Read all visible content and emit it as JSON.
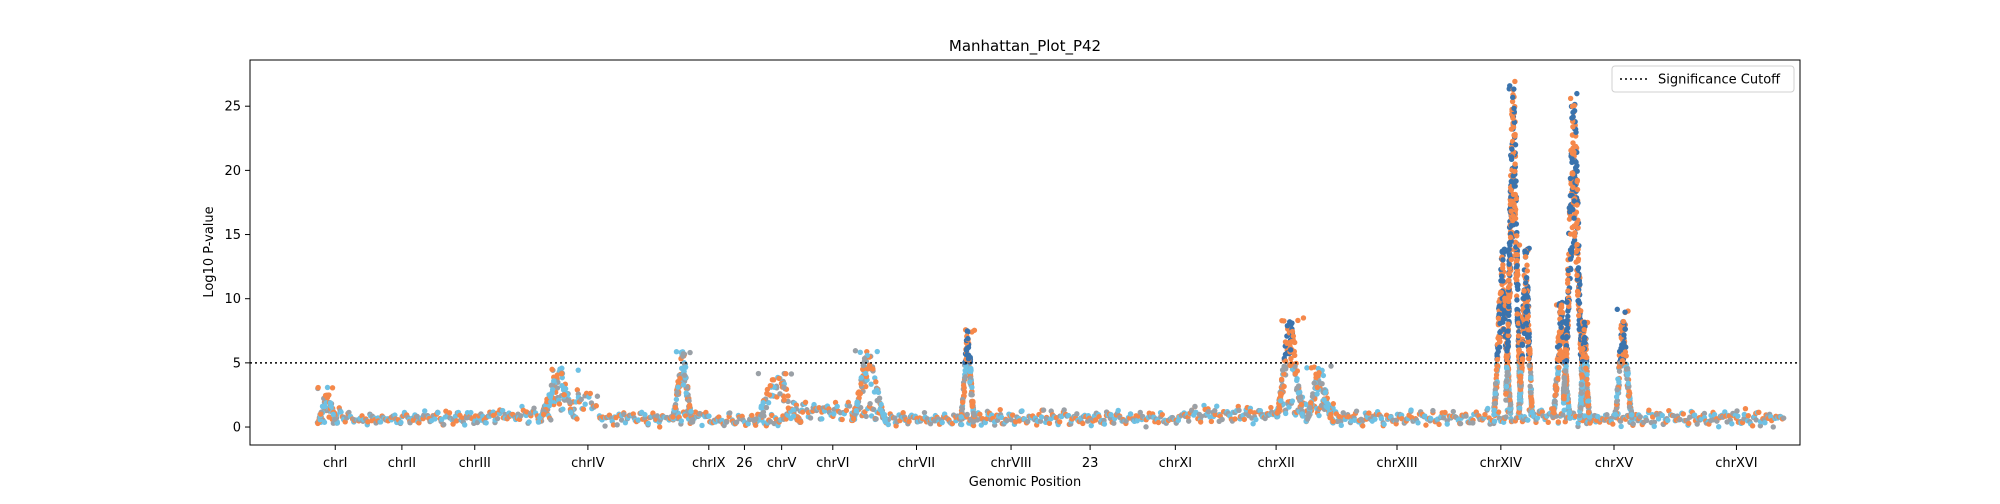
{
  "chart_data": {
    "type": "scatter",
    "title": "Manhattan_Plot_P42",
    "xlabel": "Genomic Position",
    "ylabel": "Log10 P-value",
    "ylim": [
      -1.4,
      28.6
    ],
    "y_ticks": [
      0,
      5,
      10,
      15,
      20,
      25
    ],
    "x_tick_labels": [
      "chrI",
      "chrII",
      "chrIII",
      "chrIV",
      "chrIX",
      "26",
      "chrV",
      "chrVI",
      "chrVII",
      "chrVIII",
      "23",
      "chrXI",
      "chrXII",
      "chrXIII",
      "chrXIV",
      "chrXV",
      "chrXVI"
    ],
    "x_tick_positions": [
      0.055,
      0.098,
      0.145,
      0.218,
      0.296,
      0.319,
      0.343,
      0.376,
      0.43,
      0.491,
      0.542,
      0.597,
      0.662,
      0.74,
      0.807,
      0.88,
      0.959
    ],
    "threshold": 5,
    "threshold_label": "Significance Cutoff",
    "legend_position": "top-right",
    "grid": false,
    "colors": {
      "light_blue": "#6ec1e4",
      "orange": "#f5884a",
      "dark_blue": "#3a73ad",
      "gray": "#9aa0a6"
    },
    "baseline_segments": [
      {
        "x0": 0.046,
        "x1": 0.065,
        "level": 0.9,
        "amp": 0.6
      },
      {
        "x0": 0.065,
        "x1": 0.098,
        "level": 0.6,
        "amp": 0.4
      },
      {
        "x0": 0.098,
        "x1": 0.15,
        "level": 0.7,
        "amp": 0.5
      },
      {
        "x0": 0.15,
        "x1": 0.195,
        "level": 0.9,
        "amp": 0.6
      },
      {
        "x0": 0.195,
        "x1": 0.225,
        "level": 2.0,
        "amp": 0.9
      },
      {
        "x0": 0.225,
        "x1": 0.27,
        "level": 0.7,
        "amp": 0.6
      },
      {
        "x0": 0.27,
        "x1": 0.3,
        "level": 0.8,
        "amp": 0.6
      },
      {
        "x0": 0.3,
        "x1": 0.345,
        "level": 0.5,
        "amp": 0.5
      },
      {
        "x0": 0.345,
        "x1": 0.375,
        "level": 1.3,
        "amp": 0.8
      },
      {
        "x0": 0.375,
        "x1": 0.41,
        "level": 1.2,
        "amp": 0.7
      },
      {
        "x0": 0.41,
        "x1": 0.47,
        "level": 0.6,
        "amp": 0.5
      },
      {
        "x0": 0.47,
        "x1": 0.6,
        "level": 0.7,
        "amp": 0.6
      },
      {
        "x0": 0.6,
        "x1": 0.66,
        "level": 1.0,
        "amp": 0.7
      },
      {
        "x0": 0.66,
        "x1": 0.7,
        "level": 1.6,
        "amp": 0.8
      },
      {
        "x0": 0.7,
        "x1": 0.79,
        "level": 0.7,
        "amp": 0.5
      },
      {
        "x0": 0.79,
        "x1": 0.855,
        "level": 0.8,
        "amp": 0.6
      },
      {
        "x0": 0.855,
        "x1": 0.9,
        "level": 0.6,
        "amp": 0.5
      },
      {
        "x0": 0.9,
        "x1": 0.99,
        "level": 0.7,
        "amp": 0.6
      }
    ],
    "peaks": [
      {
        "x": 0.05,
        "height": 3.1,
        "width": 0.003
      },
      {
        "x": 0.199,
        "height": 4.6,
        "width": 0.006
      },
      {
        "x": 0.279,
        "height": 5.9,
        "width": 0.003
      },
      {
        "x": 0.34,
        "height": 4.2,
        "width": 0.007
      },
      {
        "x": 0.399,
        "height": 6.0,
        "width": 0.005
      },
      {
        "x": 0.463,
        "height": 7.6,
        "width": 0.002
      },
      {
        "x": 0.671,
        "height": 8.6,
        "width": 0.004
      },
      {
        "x": 0.69,
        "height": 4.8,
        "width": 0.004
      },
      {
        "x": 0.808,
        "height": 14.0,
        "width": 0.0025
      },
      {
        "x": 0.815,
        "height": 27.3,
        "width": 0.0022
      },
      {
        "x": 0.823,
        "height": 14.2,
        "width": 0.002
      },
      {
        "x": 0.846,
        "height": 9.8,
        "width": 0.0025
      },
      {
        "x": 0.854,
        "height": 26.0,
        "width": 0.003
      },
      {
        "x": 0.861,
        "height": 8.3,
        "width": 0.0015
      },
      {
        "x": 0.886,
        "height": 9.2,
        "width": 0.0025
      }
    ]
  }
}
